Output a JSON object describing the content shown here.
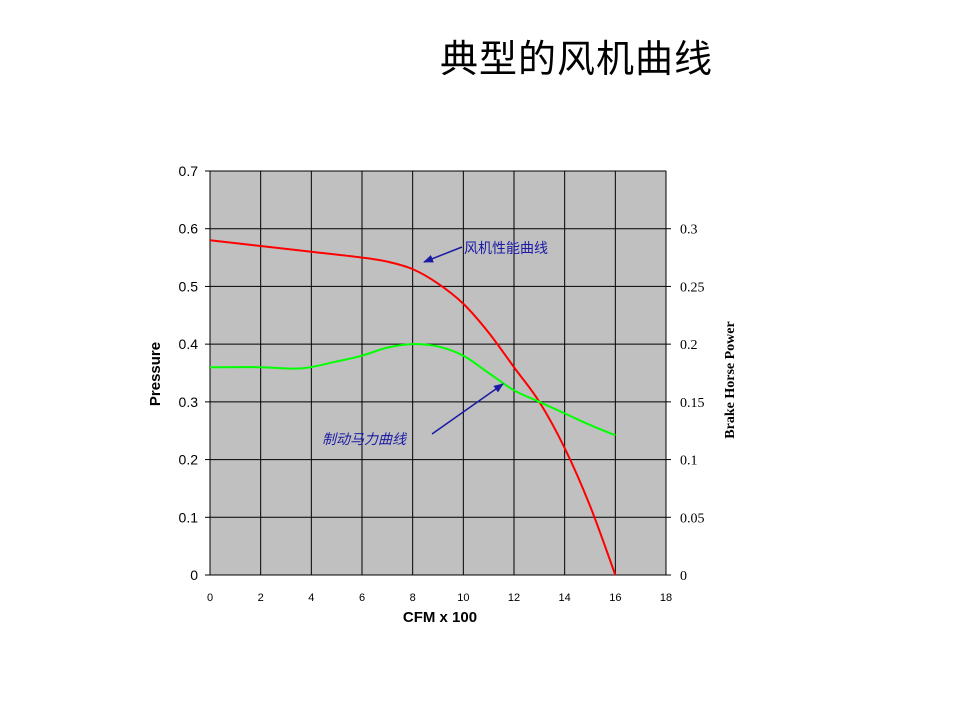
{
  "slide": {
    "title": "典型的风机曲线"
  },
  "chart_data": {
    "type": "line",
    "xlabel": "CFM x 100",
    "ylabel": "Pressure",
    "y2label": "Brake Horse Power",
    "xlim": [
      0,
      18
    ],
    "ylim": [
      0,
      0.7
    ],
    "y2lim": [
      0,
      0.35
    ],
    "x_ticks": [
      "0",
      "2",
      "4",
      "6",
      "8",
      "10",
      "12",
      "14",
      "16",
      "18"
    ],
    "y_ticks": [
      "0",
      "0.1",
      "0.2",
      "0.3",
      "0.4",
      "0.5",
      "0.6",
      "0.7"
    ],
    "y2_ticks": [
      "0",
      "0.05",
      "0.1",
      "0.15",
      "0.2",
      "0.25",
      "0.3"
    ],
    "grid": true,
    "plot_background": "#c0c0c0",
    "series": [
      {
        "axis": "left",
        "color": "#ff0000",
        "points": [
          [
            0,
            0.58
          ],
          [
            2,
            0.57
          ],
          [
            4,
            0.56
          ],
          [
            6,
            0.55
          ],
          [
            7,
            0.543
          ],
          [
            8,
            0.53
          ],
          [
            9,
            0.505
          ],
          [
            10,
            0.47
          ],
          [
            11,
            0.42
          ],
          [
            12,
            0.36
          ],
          [
            13,
            0.3
          ],
          [
            14,
            0.22
          ],
          [
            15,
            0.12
          ],
          [
            16,
            0.0
          ]
        ]
      },
      {
        "axis": "right",
        "color": "#00ff00",
        "points": [
          [
            0,
            0.18
          ],
          [
            2,
            0.18
          ],
          [
            3.6,
            0.179
          ],
          [
            5,
            0.185
          ],
          [
            6,
            0.19
          ],
          [
            7,
            0.197
          ],
          [
            8,
            0.2
          ],
          [
            9,
            0.198
          ],
          [
            10,
            0.19
          ],
          [
            11,
            0.175
          ],
          [
            12,
            0.16
          ],
          [
            13,
            0.15
          ],
          [
            14,
            0.14
          ],
          [
            15,
            0.13
          ],
          [
            16,
            0.121
          ]
        ]
      }
    ],
    "annotations": [
      {
        "text": "风机性能曲线",
        "style": "normal",
        "color": "#1a1aa6",
        "arrow_to": [
          8.4,
          0.54
        ],
        "axis": "left"
      },
      {
        "text": "制动马力曲线",
        "style": "italic",
        "color": "#1a1aa6",
        "arrow_to": [
          11.6,
          0.165
        ],
        "axis": "right"
      }
    ]
  }
}
